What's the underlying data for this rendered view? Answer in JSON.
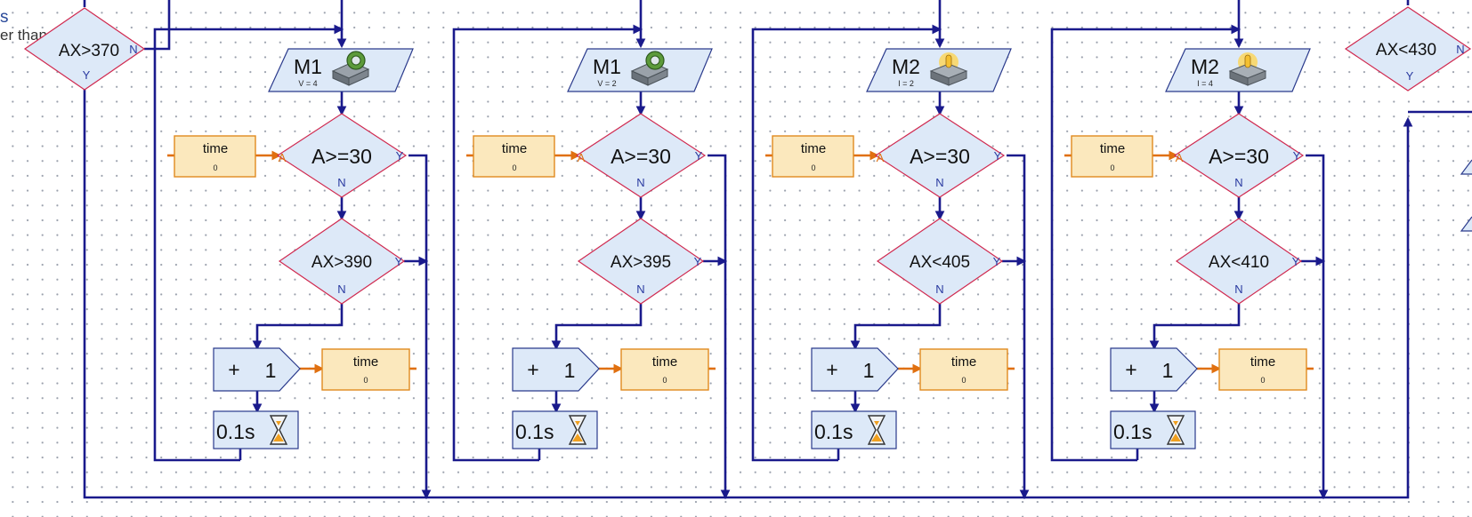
{
  "side_note": {
    "line1": "s",
    "line2": "er than"
  },
  "colors": {
    "flow": "#1a1a8c",
    "branch": "#e07010",
    "element_fill": "#dde9f8",
    "decision_border": "#d02a50",
    "variable_fill": "#fbe8bd"
  },
  "left_decision": {
    "condition": "AX>370",
    "yes": "Y",
    "no": "N"
  },
  "right_decision": {
    "condition": "AX<430",
    "yes": "Y",
    "no": "N"
  },
  "columns": [
    {
      "motor_name": "M1",
      "motor_value": "V = 4",
      "motor_icon": "motor-icon",
      "var_name": "time",
      "var_value": "0",
      "branch_label": "A",
      "check1": "A>=30",
      "check2": "AX>390",
      "yes": "Y",
      "no": "N",
      "inc_op": "+",
      "inc_val": "1",
      "wait": "0.1s"
    },
    {
      "motor_name": "M1",
      "motor_value": "V = 2",
      "motor_icon": "motor-icon",
      "var_name": "time",
      "var_value": "0",
      "branch_label": "A",
      "check1": "A>=30",
      "check2": "AX>395",
      "yes": "Y",
      "no": "N",
      "inc_op": "+",
      "inc_val": "1",
      "wait": "0.1s"
    },
    {
      "motor_name": "M2",
      "motor_value": "I = 2",
      "motor_icon": "lamp-icon",
      "var_name": "time",
      "var_value": "0",
      "branch_label": "A",
      "check1": "A>=30",
      "check2": "AX<405",
      "yes": "Y",
      "no": "N",
      "inc_op": "+",
      "inc_val": "1",
      "wait": "0.1s"
    },
    {
      "motor_name": "M2",
      "motor_value": "I = 4",
      "motor_icon": "lamp-icon",
      "var_name": "time",
      "var_value": "0",
      "branch_label": "A",
      "check1": "A>=30",
      "check2": "AX<410",
      "yes": "Y",
      "no": "N",
      "inc_op": "+",
      "inc_val": "1",
      "wait": "0.1s"
    }
  ]
}
